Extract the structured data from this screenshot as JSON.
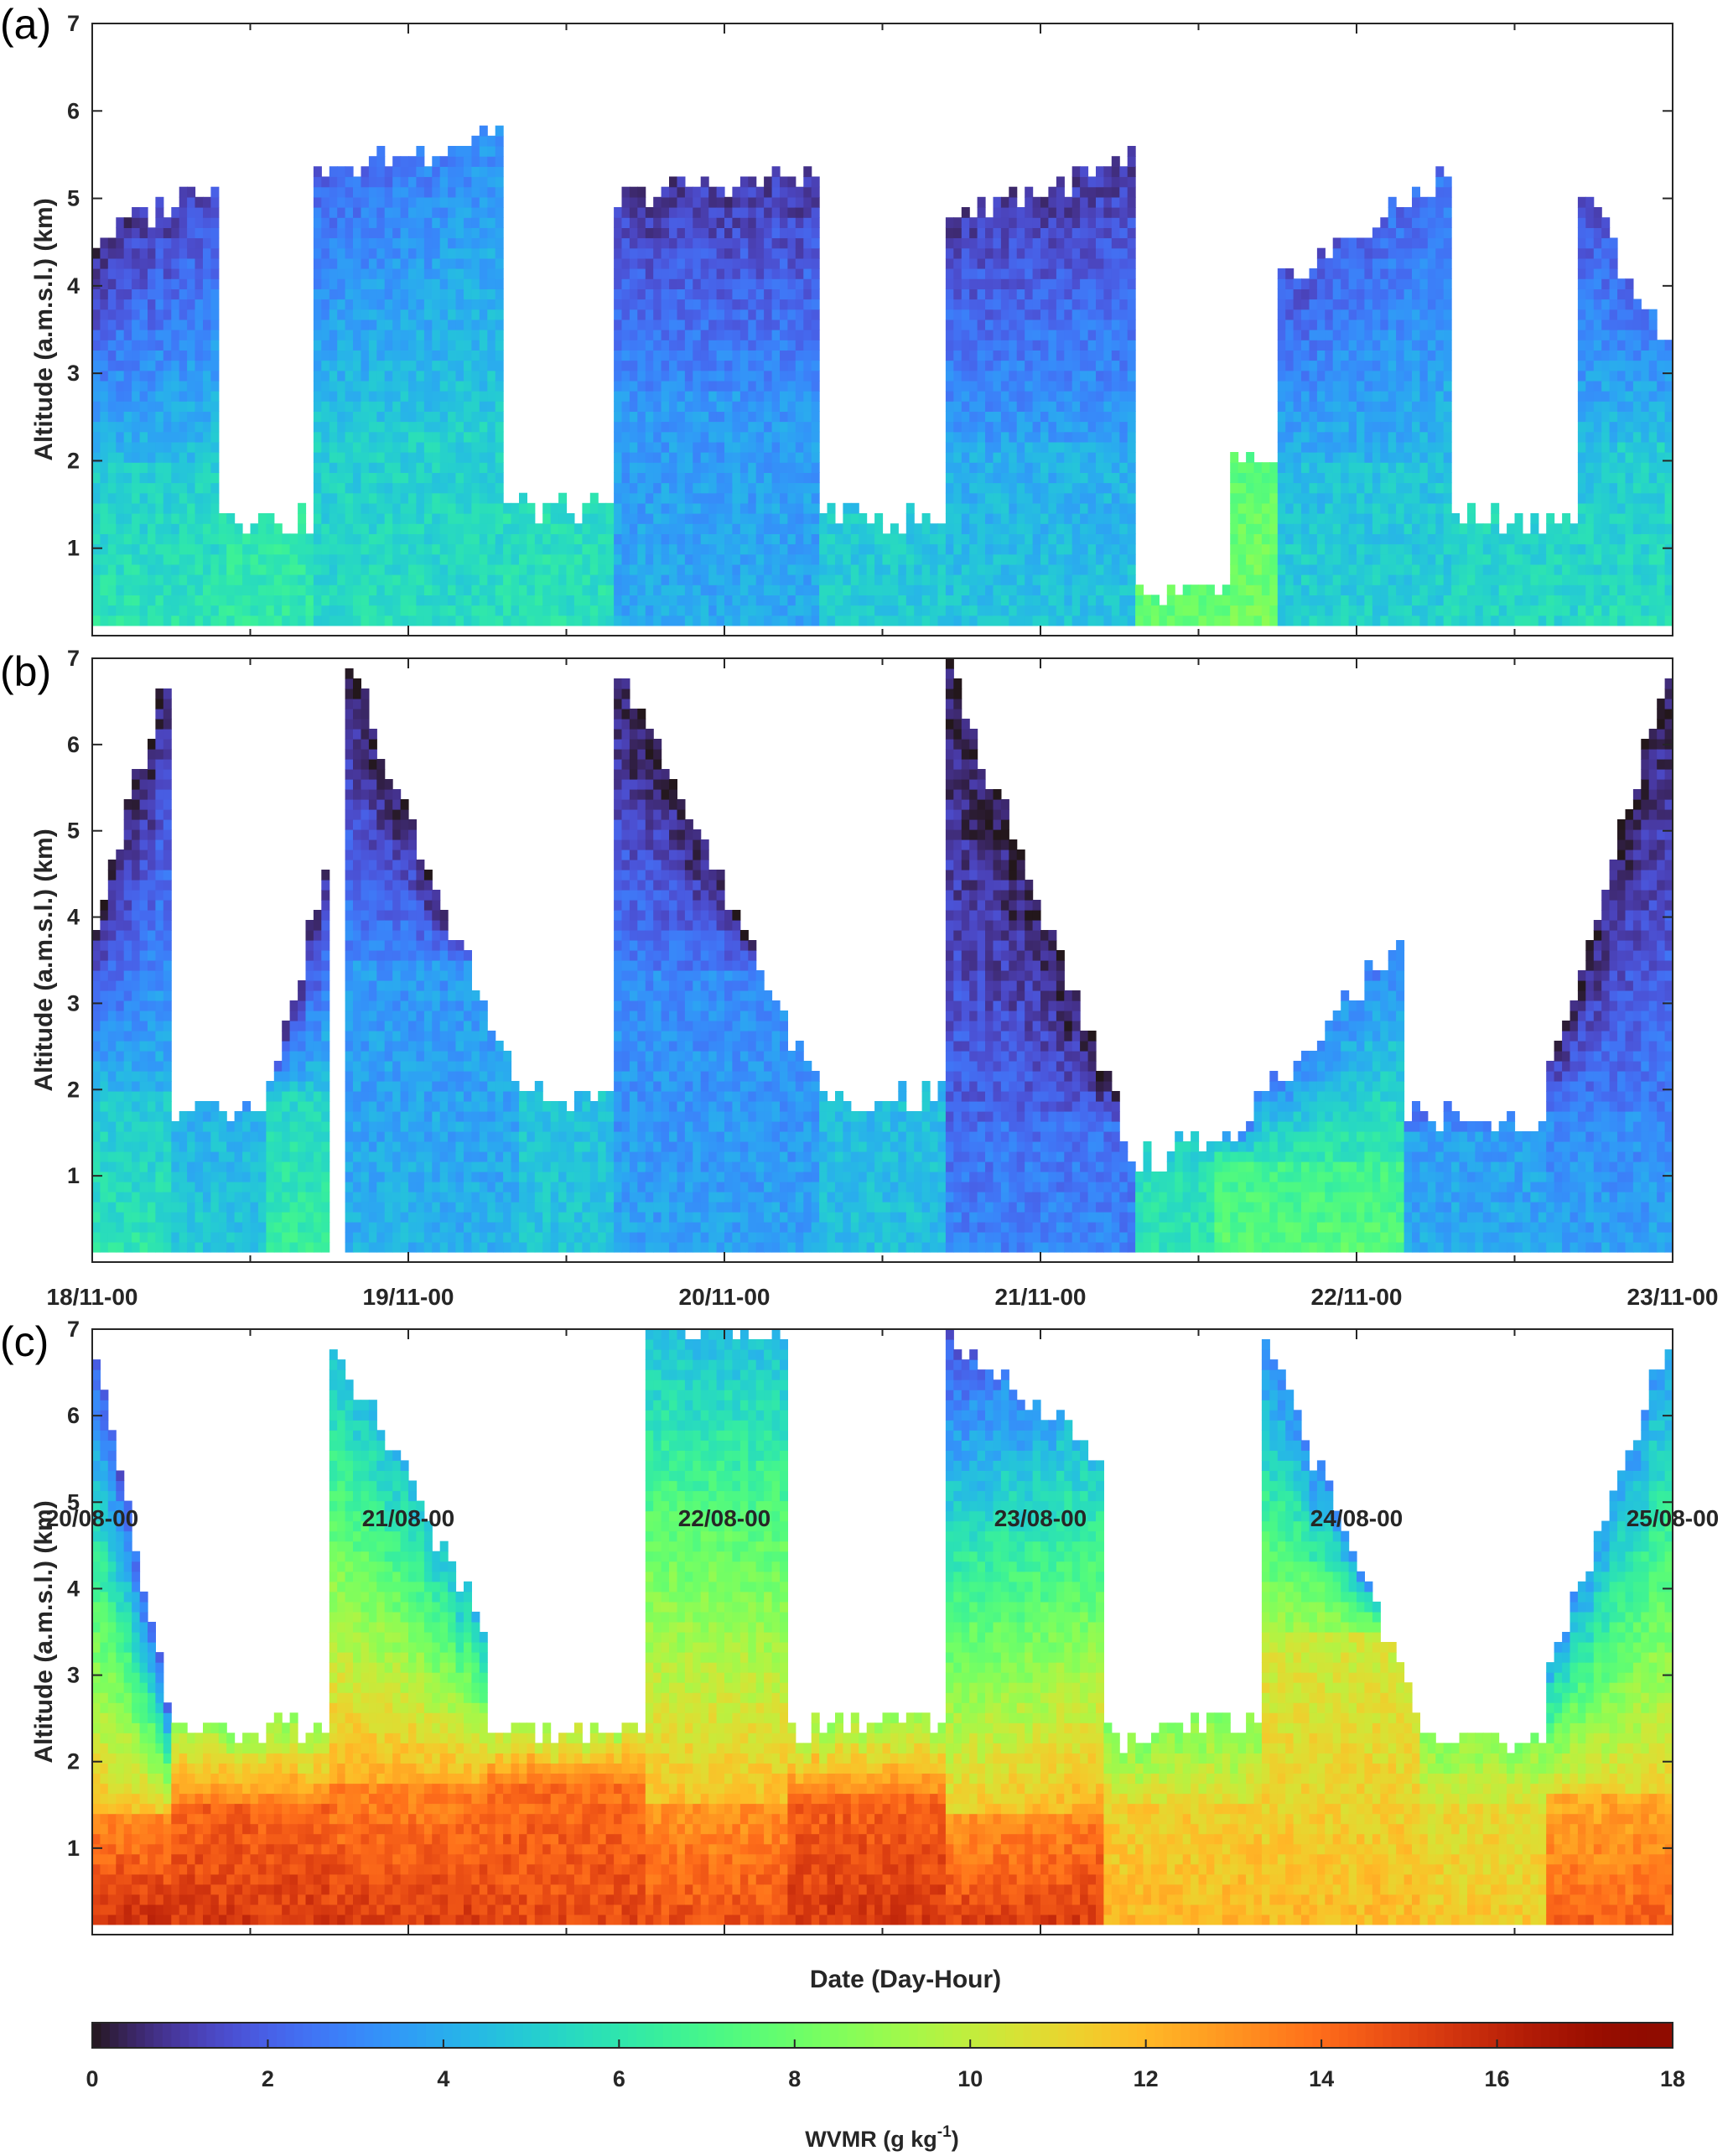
{
  "chart_data": [
    {
      "panel": "(a)",
      "type": "heatmap",
      "ylabel": "Altitude (a.m.s.l.) (km)",
      "ylim": [
        0,
        7
      ],
      "yticks": [
        "1",
        "2",
        "3",
        "4",
        "5",
        "6",
        "7"
      ],
      "xlim": [
        "18/11-00",
        "23/11-00"
      ],
      "xtick_labels": [],
      "variable": "WVMR",
      "blocks": [
        {
          "x": [
            0.0,
            0.4
          ],
          "top": [
            4.5,
            5.2
          ],
          "upper_low": 0.5,
          "upper_high": 1.6,
          "base": 6.0,
          "low_cut": 2.0
        },
        {
          "x": [
            0.4,
            0.7
          ],
          "top": [
            1.4,
            1.3
          ],
          "upper_low": 4.5,
          "upper_high": 4.5,
          "base": 6.2,
          "low_cut": 2.0
        },
        {
          "x": [
            0.7,
            1.3
          ],
          "top": [
            5.2,
            5.8
          ],
          "upper_low": 2.0,
          "upper_high": 3.3,
          "base": 5.6,
          "low_cut": 2.5
        },
        {
          "x": [
            1.3,
            1.65
          ],
          "top": [
            1.5,
            1.4
          ],
          "upper_low": 4.2,
          "upper_high": 4.2,
          "base": 5.8,
          "low_cut": 2.0
        },
        {
          "x": [
            1.65,
            2.3
          ],
          "top": [
            5.0,
            5.3
          ],
          "upper_low": 1.0,
          "upper_high": 1.0,
          "base": 4.0,
          "low_cut": 2.8
        },
        {
          "x": [
            2.3,
            2.7
          ],
          "top": [
            1.4,
            1.3
          ],
          "upper_low": 4.0,
          "upper_high": 4.0,
          "base": 5.0,
          "low_cut": 2.0
        },
        {
          "x": [
            2.7,
            3.3
          ],
          "top": [
            4.8,
            5.4
          ],
          "upper_low": 1.0,
          "upper_high": 1.0,
          "base": 4.8,
          "low_cut": 2.2
        },
        {
          "x": [
            3.3,
            3.6
          ],
          "top": [
            0.4,
            0.5
          ],
          "upper_low": 6.5,
          "upper_high": 6.5,
          "base": 7.8,
          "low_cut": 0.8
        },
        {
          "x": [
            3.6,
            3.75
          ],
          "top": [
            2.0,
            1.8
          ],
          "upper_low": 7.5,
          "upper_high": 7.5,
          "base": 8.2,
          "low_cut": 1.0
        },
        {
          "x": [
            3.75,
            4.3
          ],
          "top": [
            4.0,
            5.3
          ],
          "upper_low": 1.6,
          "upper_high": 2.5,
          "base": 5.2,
          "low_cut": 2.0
        },
        {
          "x": [
            4.3,
            4.7
          ],
          "top": [
            1.4,
            1.3
          ],
          "upper_low": 4.2,
          "upper_high": 4.2,
          "base": 5.4,
          "low_cut": 2.0
        },
        {
          "x": [
            4.7,
            5.0
          ],
          "top": [
            5.2,
            3.2
          ],
          "upper_low": 1.2,
          "upper_high": 3.0,
          "base": 5.6,
          "low_cut": 2.2
        }
      ]
    },
    {
      "panel": "(b)",
      "type": "heatmap",
      "ylabel": "Altitude (a.m.s.l.) (km)",
      "ylim": [
        0,
        7
      ],
      "yticks": [
        "1",
        "2",
        "3",
        "4",
        "5",
        "6",
        "7"
      ],
      "xlim": [
        "18/11-00",
        "23/11-00"
      ],
      "xtick_labels": [
        "18/11-00",
        "19/11-00",
        "20/11-00",
        "21/11-00",
        "22/11-00",
        "23/11-00"
      ],
      "variable": "WVMR",
      "blocks": [
        {
          "x": [
            0.0,
            0.25
          ],
          "top": [
            3.7,
            7.0
          ],
          "upper_low": 0.3,
          "upper_high": 0.3,
          "base": 6.0,
          "low_cut": 2.0
        },
        {
          "x": [
            0.25,
            0.55
          ],
          "top": [
            1.8,
            1.8
          ],
          "upper_low": 0.5,
          "upper_high": 0.5,
          "base": 5.0,
          "low_cut": 1.8
        },
        {
          "x": [
            0.55,
            0.75
          ],
          "top": [
            2.0,
            4.6
          ],
          "upper_low": 0.5,
          "upper_high": 0.5,
          "base": 6.5,
          "low_cut": 2.0
        },
        {
          "x": [
            0.8,
            1.35
          ],
          "top": [
            7.0,
            2.0
          ],
          "upper_low": 0.2,
          "upper_high": 0.3,
          "base": 4.2,
          "low_cut": 3.5
        },
        {
          "x": [
            1.35,
            1.65
          ],
          "top": [
            2.0,
            1.9
          ],
          "upper_low": 4.0,
          "upper_high": 4.0,
          "base": 4.8,
          "low_cut": 2.0
        },
        {
          "x": [
            1.65,
            2.3
          ],
          "top": [
            7.0,
            2.0
          ],
          "upper_low": 0.2,
          "upper_high": 0.2,
          "base": 3.8,
          "low_cut": 3.4
        },
        {
          "x": [
            2.3,
            2.7
          ],
          "top": [
            1.8,
            2.0
          ],
          "upper_low": 4.0,
          "upper_high": 4.0,
          "base": 4.6,
          "low_cut": 2.0
        },
        {
          "x": [
            2.7,
            3.3
          ],
          "top": [
            7.0,
            1.2
          ],
          "upper_low": 0.2,
          "upper_high": 0.2,
          "base": 3.0,
          "low_cut": 1.6
        },
        {
          "x": [
            3.3,
            3.55
          ],
          "top": [
            1.2,
            1.4
          ],
          "upper_low": 5.0,
          "upper_high": 5.0,
          "base": 6.0,
          "low_cut": 1.0
        },
        {
          "x": [
            3.55,
            4.15
          ],
          "top": [
            1.3,
            3.8
          ],
          "upper_low": 3.0,
          "upper_high": 3.0,
          "base": 7.6,
          "low_cut": 1.2
        },
        {
          "x": [
            4.15,
            4.6
          ],
          "top": [
            1.7,
            1.6
          ],
          "upper_low": 2.0,
          "upper_high": 2.0,
          "base": 4.0,
          "low_cut": 1.5
        },
        {
          "x": [
            4.6,
            5.0
          ],
          "top": [
            2.0,
            7.0
          ],
          "upper_low": 0.3,
          "upper_high": 0.3,
          "base": 3.8,
          "low_cut": 1.8
        }
      ]
    },
    {
      "panel": "(c)",
      "type": "heatmap",
      "ylabel": "Altitude (a.m.s.l.) (km)",
      "xlabel": "Date (Day-Hour)",
      "ylim": [
        0,
        7
      ],
      "yticks": [
        "1",
        "2",
        "3",
        "4",
        "5",
        "6",
        "7"
      ],
      "xlim": [
        "20/08-00",
        "25/08-00"
      ],
      "xtick_labels": [
        "20/08-00",
        "21/08-00",
        "22/08-00",
        "23/08-00",
        "24/08-00",
        "25/08-00"
      ],
      "variable": "WVMR",
      "blocks": [
        {
          "x": [
            0.0,
            0.25
          ],
          "top": [
            7.0,
            2.6
          ],
          "upper_low": 2.0,
          "upper_high": 2.0,
          "base": 16.0,
          "low_cut": 1.4
        },
        {
          "x": [
            0.25,
            0.75
          ],
          "top": [
            2.4,
            2.4
          ],
          "upper_low": 9.0,
          "upper_high": 9.0,
          "base": 15.5,
          "low_cut": 1.5
        },
        {
          "x": [
            0.75,
            1.25
          ],
          "top": [
            7.0,
            3.5
          ],
          "upper_low": 4.5,
          "upper_high": 4.5,
          "base": 15.5,
          "low_cut": 1.8
        },
        {
          "x": [
            1.25,
            1.75
          ],
          "top": [
            2.4,
            2.3
          ],
          "upper_low": 9.5,
          "upper_high": 9.5,
          "base": 15.0,
          "low_cut": 1.8
        },
        {
          "x": [
            1.75,
            2.2
          ],
          "top": [
            7.0,
            7.0
          ],
          "upper_low": 4.5,
          "upper_high": 4.5,
          "base": 15.0,
          "low_cut": 1.5
        },
        {
          "x": [
            2.2,
            2.7
          ],
          "top": [
            2.4,
            2.5
          ],
          "upper_low": 9.0,
          "upper_high": 9.0,
          "base": 15.5,
          "low_cut": 1.6
        },
        {
          "x": [
            2.7,
            3.2
          ],
          "top": [
            7.0,
            5.5
          ],
          "upper_low": 1.5,
          "upper_high": 5.0,
          "base": 15.5,
          "low_cut": 1.4
        },
        {
          "x": [
            3.2,
            3.7
          ],
          "top": [
            2.3,
            2.5
          ],
          "upper_low": 8.5,
          "upper_high": 8.5,
          "base": 12.0,
          "low_cut": 1.5
        },
        {
          "x": [
            3.7,
            4.2
          ],
          "top": [
            7.0,
            2.5
          ],
          "upper_low": 3.0,
          "upper_high": 3.0,
          "base": 12.0,
          "low_cut": 3.5
        },
        {
          "x": [
            4.2,
            4.6
          ],
          "top": [
            2.3,
            2.3
          ],
          "upper_low": 8.5,
          "upper_high": 8.5,
          "base": 11.5,
          "low_cut": 1.5
        },
        {
          "x": [
            4.6,
            5.0
          ],
          "top": [
            3.0,
            7.0
          ],
          "upper_low": 3.5,
          "upper_high": 3.5,
          "base": 14.5,
          "low_cut": 1.6
        }
      ]
    }
  ],
  "colorbar": {
    "label_main": "WVMR (g kg",
    "label_exp": "-1",
    "label_close": ")",
    "ticks": [
      "0",
      "2",
      "4",
      "6",
      "8",
      "10",
      "12",
      "14",
      "16",
      "18"
    ],
    "range": [
      0,
      18
    ],
    "colormap": "turbo"
  }
}
